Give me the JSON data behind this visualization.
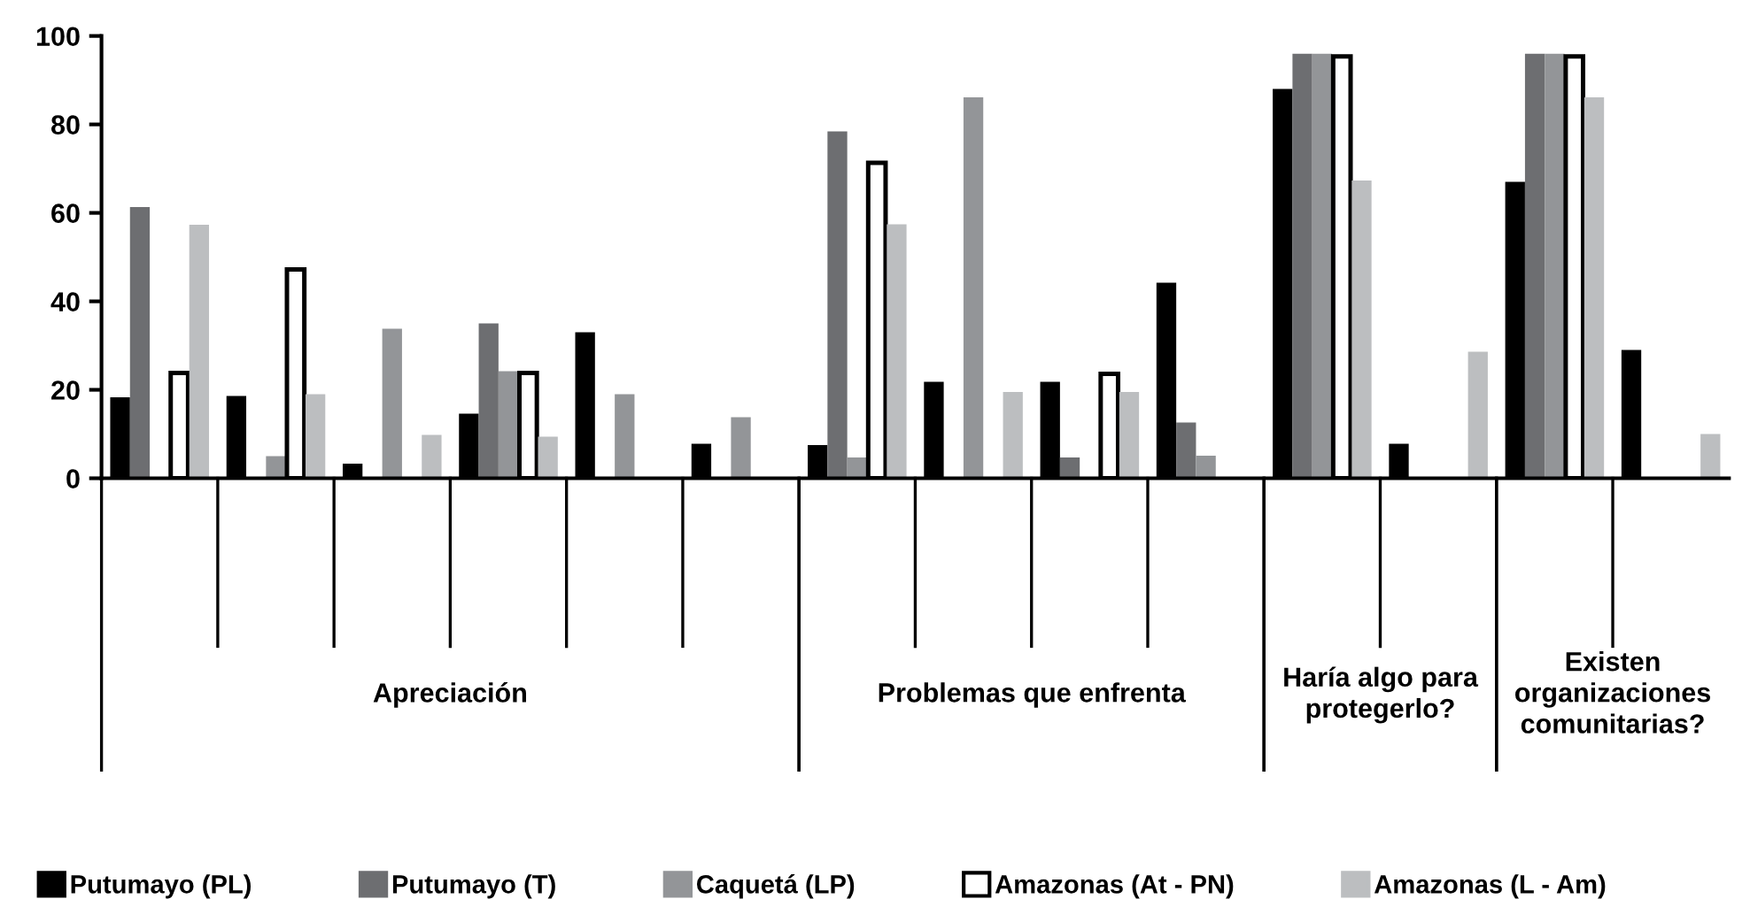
{
  "chart_data": {
    "type": "bar",
    "categories": [
      null,
      null,
      null,
      null,
      null,
      null,
      null,
      null,
      null,
      null,
      null,
      null,
      null,
      null
    ],
    "annotations": [
      "Apreciación",
      "Problemas que enfrenta",
      "Haría algo para protegerlo?",
      "Existen organizaciones comunitarias?"
    ],
    "series": [
      {
        "name": "Putumayo (PL)",
        "color": "#000000",
        "values": [
          18.3,
          18.6,
          3.3,
          14.6,
          33,
          7.8,
          7.5,
          21.8,
          21.8,
          44.2,
          88,
          7.8,
          67,
          29
        ]
      },
      {
        "name": "Putumayo (T)",
        "color": "#6d6e71",
        "values": [
          61.3,
          null,
          null,
          35,
          null,
          null,
          78.4,
          null,
          4.7,
          12.6,
          96,
          null,
          96,
          null
        ]
      },
      {
        "name": "Caquetá (LP)",
        "color": "#939598",
        "values": [
          null,
          5,
          33.8,
          24.2,
          19,
          13.8,
          4.7,
          86.1,
          null,
          5.1,
          96,
          null,
          96,
          null
        ]
      },
      {
        "name": "Amazonas (At - PN)",
        "color": "#ffffff",
        "values": [
          23.8,
          47.2,
          null,
          23.8,
          null,
          null,
          71.3,
          null,
          23.6,
          null,
          95.4,
          null,
          95.4,
          null
        ]
      },
      {
        "name": "Amazonas (L - Am)",
        "color": "#bcbec0",
        "values": [
          57.3,
          19,
          9.8,
          9.4,
          null,
          null,
          57.4,
          19.5,
          19.5,
          null,
          67.3,
          28.6,
          86.1,
          10
        ]
      }
    ],
    "ylim": [
      0,
      100
    ],
    "yticks": [
      0,
      20,
      40,
      60,
      80,
      100
    ],
    "grid": false,
    "legend": "bottom"
  }
}
